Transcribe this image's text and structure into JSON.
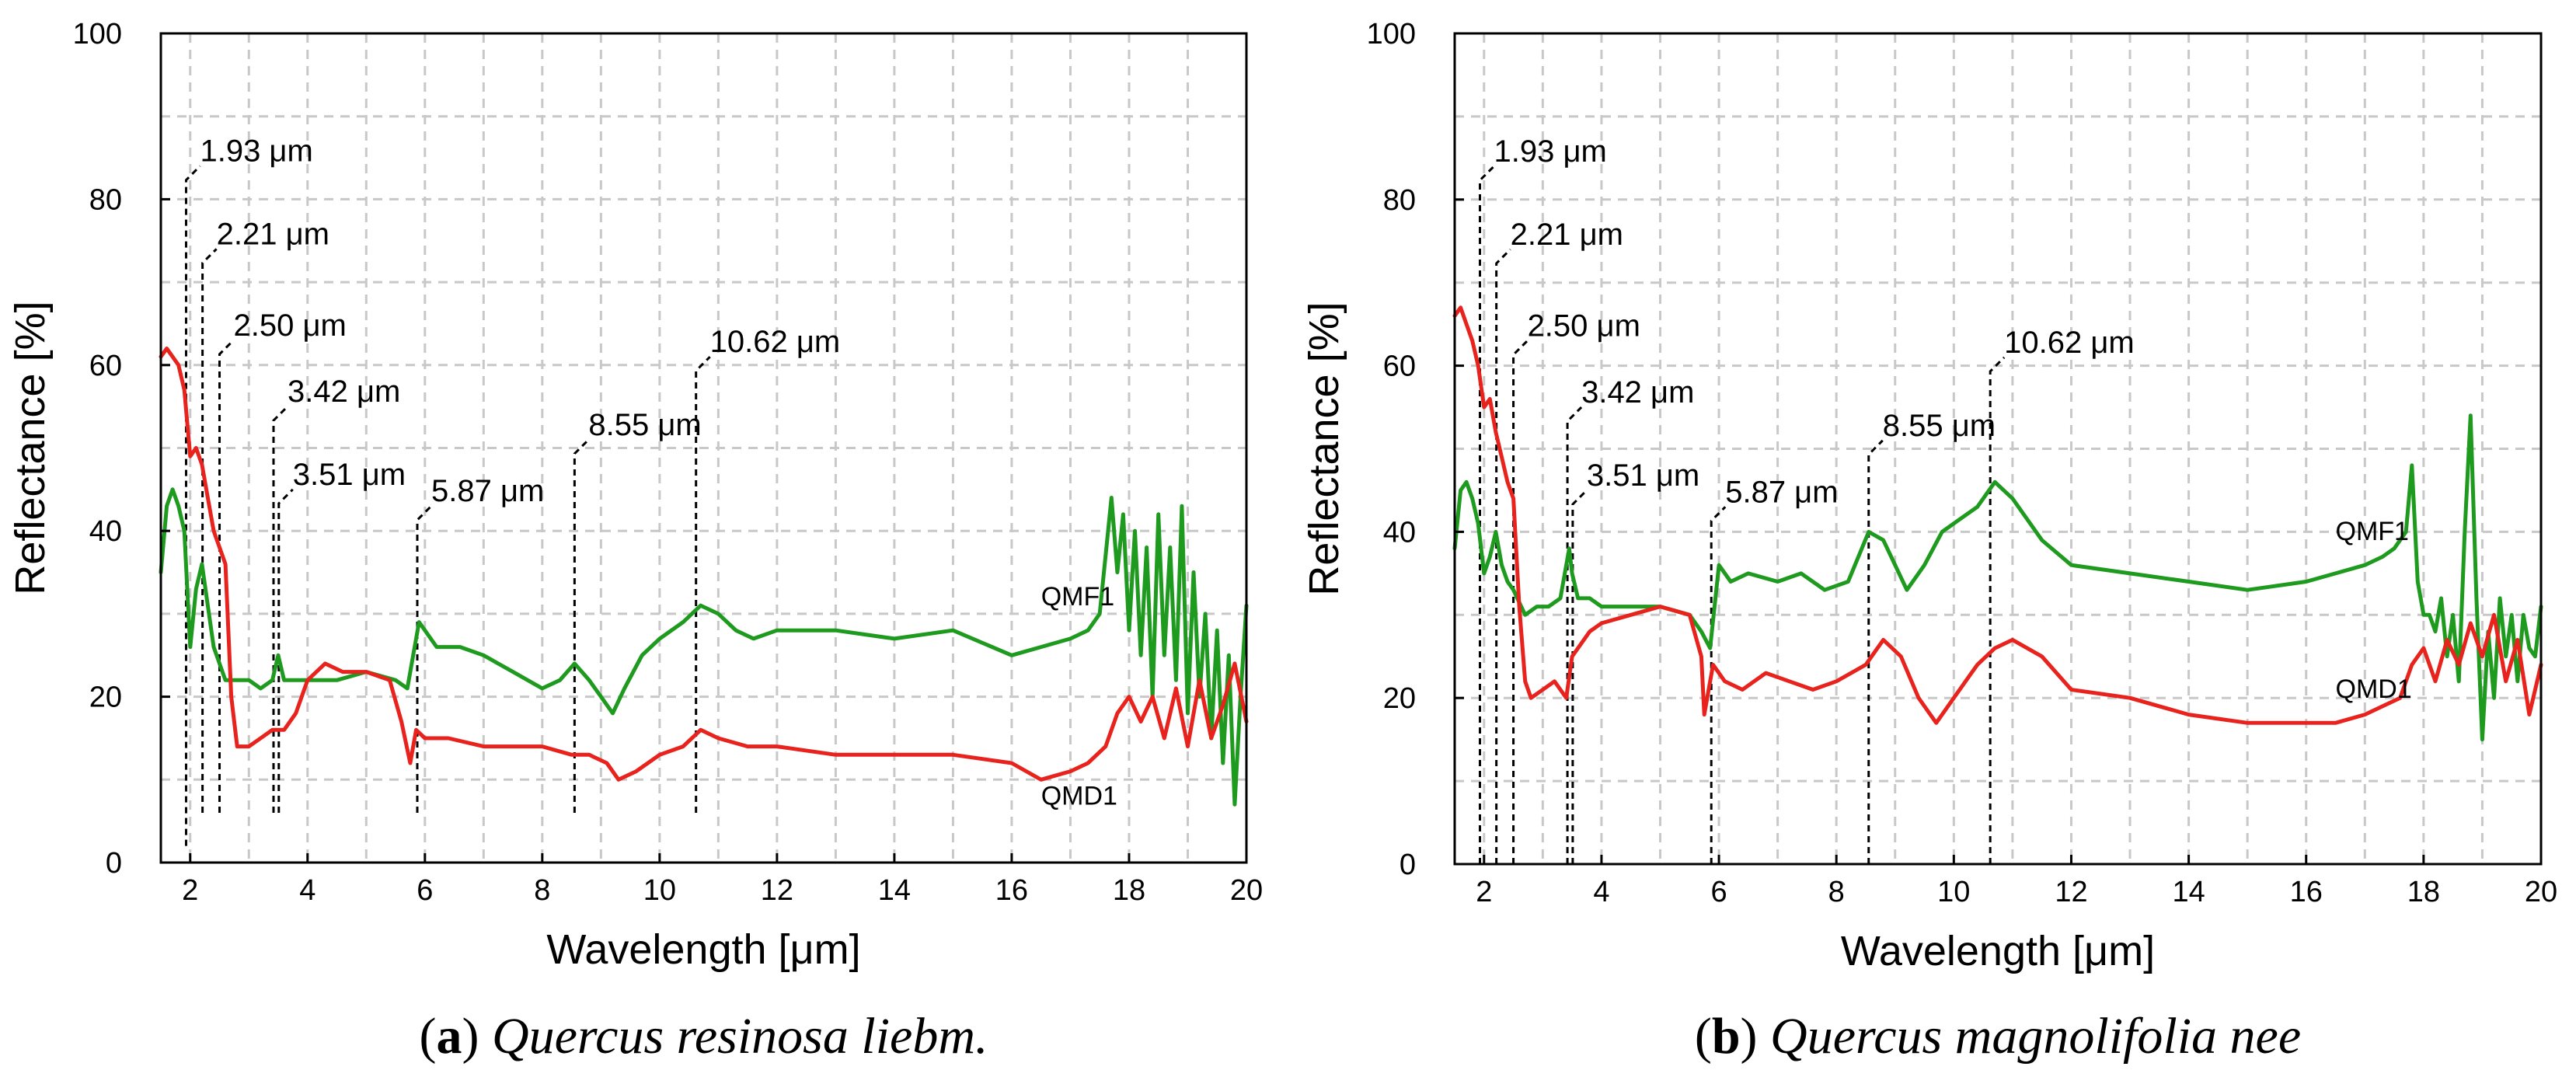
{
  "colors": {
    "QMF1": "#1e9a1e",
    "QMD1": "#e8221c",
    "grid": "#c8c8c8",
    "text": "#000000"
  },
  "chart_data": [
    {
      "type": "line",
      "panel": "a",
      "caption_letter": "a",
      "caption_species": "Quercus resinosa liebm.",
      "xlabel": "Wavelength [μm]",
      "ylabel": "Reflectance [%]",
      "xlim": [
        1.5,
        20
      ],
      "ylim": [
        0,
        100
      ],
      "xticks": [
        2,
        4,
        6,
        8,
        10,
        12,
        14,
        16,
        18,
        20
      ],
      "yticks": [
        0,
        20,
        40,
        60,
        80,
        100
      ],
      "grid": true,
      "annotations": [
        {
          "x": 1.93,
          "label": "1.93 μm",
          "label_y": 84,
          "bottom_y": 2
        },
        {
          "x": 2.21,
          "label": "2.21 μm",
          "label_y": 74,
          "bottom_y": 6
        },
        {
          "x": 2.5,
          "label": "2.50 μm",
          "label_y": 63,
          "bottom_y": 6
        },
        {
          "x": 3.42,
          "label": "3.42 μm",
          "label_y": 55,
          "bottom_y": 6
        },
        {
          "x": 3.51,
          "label": "3.51 μm",
          "label_y": 45,
          "bottom_y": 6
        },
        {
          "x": 5.87,
          "label": "5.87 μm",
          "label_y": 43,
          "bottom_y": 6
        },
        {
          "x": 8.55,
          "label": "8.55 μm",
          "label_y": 51,
          "bottom_y": 6
        },
        {
          "x": 10.62,
          "label": "10.62 μm",
          "label_y": 61,
          "bottom_y": 6
        }
      ],
      "series_labels": [
        {
          "name": "QMF1",
          "x": 16.5,
          "y": 31
        },
        {
          "name": "QMD1",
          "x": 16.5,
          "y": 7
        }
      ],
      "series": [
        {
          "name": "QMF1",
          "x": [
            1.5,
            1.6,
            1.7,
            1.8,
            1.9,
            2.0,
            2.1,
            2.2,
            2.3,
            2.4,
            2.5,
            2.6,
            2.7,
            2.8,
            3.0,
            3.2,
            3.4,
            3.5,
            3.6,
            3.8,
            4.0,
            4.5,
            5.0,
            5.5,
            5.7,
            5.8,
            5.9,
            6.2,
            6.6,
            7.0,
            7.5,
            8.0,
            8.3,
            8.55,
            8.8,
            9.0,
            9.2,
            9.4,
            9.7,
            10.0,
            10.4,
            10.7,
            11.0,
            11.3,
            11.6,
            12.0,
            13.0,
            14.0,
            15.0,
            16.0,
            16.5,
            17.0,
            17.3,
            17.5,
            17.7,
            17.8,
            17.9,
            18.0,
            18.1,
            18.2,
            18.3,
            18.4,
            18.5,
            18.6,
            18.7,
            18.8,
            18.9,
            19.0,
            19.1,
            19.2,
            19.3,
            19.4,
            19.5,
            19.6,
            19.7,
            19.8,
            19.9,
            20.0
          ],
          "values": [
            35,
            43,
            45,
            43,
            40,
            26,
            33,
            36,
            31,
            26,
            24,
            22,
            22,
            22,
            22,
            21,
            22,
            25,
            22,
            22,
            22,
            22,
            23,
            22,
            21,
            25,
            29,
            26,
            26,
            25,
            23,
            21,
            22,
            24,
            22,
            20,
            18,
            21,
            25,
            27,
            29,
            31,
            30,
            28,
            27,
            28,
            28,
            27,
            28,
            25,
            26,
            27,
            28,
            30,
            44,
            35,
            42,
            28,
            40,
            25,
            38,
            20,
            42,
            25,
            38,
            22,
            43,
            18,
            35,
            20,
            30,
            15,
            28,
            12,
            25,
            7,
            20,
            31
          ]
        },
        {
          "name": "QMD1",
          "x": [
            1.5,
            1.6,
            1.7,
            1.8,
            1.9,
            2.0,
            2.1,
            2.2,
            2.3,
            2.4,
            2.5,
            2.6,
            2.7,
            2.8,
            3.0,
            3.2,
            3.4,
            3.6,
            3.8,
            4.0,
            4.3,
            4.6,
            5.0,
            5.4,
            5.6,
            5.75,
            5.85,
            6.0,
            6.4,
            7.0,
            7.5,
            8.0,
            8.5,
            8.8,
            9.1,
            9.3,
            9.6,
            10.0,
            10.4,
            10.7,
            11.0,
            11.5,
            12.0,
            13.0,
            14.0,
            15.0,
            16.0,
            16.5,
            17.0,
            17.3,
            17.6,
            17.8,
            18.0,
            18.2,
            18.4,
            18.6,
            18.8,
            19.0,
            19.2,
            19.4,
            19.6,
            19.8,
            20.0
          ],
          "values": [
            61,
            62,
            61,
            60,
            57,
            49,
            50,
            48,
            44,
            40,
            38,
            36,
            20,
            14,
            14,
            15,
            16,
            16,
            18,
            22,
            24,
            23,
            23,
            22,
            17,
            12,
            16,
            15,
            15,
            14,
            14,
            14,
            13,
            13,
            12,
            10,
            11,
            13,
            14,
            16,
            15,
            14,
            14,
            13,
            13,
            13,
            12,
            10,
            11,
            12,
            14,
            18,
            20,
            17,
            20,
            15,
            21,
            14,
            22,
            15,
            19,
            24,
            17
          ]
        }
      ]
    },
    {
      "type": "line",
      "panel": "b",
      "caption_letter": "b",
      "caption_species": "Quercus magnolifolia nee",
      "xlabel": "Wavelength [μm]",
      "ylabel": "Reflectance [%]",
      "xlim": [
        1.5,
        20
      ],
      "ylim": [
        0,
        100
      ],
      "xticks": [
        2,
        4,
        6,
        8,
        10,
        12,
        14,
        16,
        18,
        20
      ],
      "yticks": [
        0,
        20,
        40,
        60,
        80,
        100
      ],
      "grid": true,
      "annotations": [
        {
          "x": 1.93,
          "label": "1.93 μm",
          "label_y": 84,
          "bottom_y": 0
        },
        {
          "x": 2.21,
          "label": "2.21 μm",
          "label_y": 74,
          "bottom_y": 0
        },
        {
          "x": 2.5,
          "label": "2.50 μm",
          "label_y": 63,
          "bottom_y": 0
        },
        {
          "x": 3.42,
          "label": "3.42 μm",
          "label_y": 55,
          "bottom_y": 0
        },
        {
          "x": 3.51,
          "label": "3.51 μm",
          "label_y": 45,
          "bottom_y": 0
        },
        {
          "x": 5.87,
          "label": "5.87 μm",
          "label_y": 43,
          "bottom_y": 0
        },
        {
          "x": 8.55,
          "label": "8.55 μm",
          "label_y": 51,
          "bottom_y": 0
        },
        {
          "x": 10.62,
          "label": "10.62 μm",
          "label_y": 61,
          "bottom_y": 0
        }
      ],
      "series_labels": [
        {
          "name": "QMF1",
          "x": 16.5,
          "y": 39
        },
        {
          "name": "QMD1",
          "x": 16.5,
          "y": 20
        }
      ],
      "series": [
        {
          "name": "QMF1",
          "x": [
            1.5,
            1.6,
            1.7,
            1.8,
            1.9,
            2.0,
            2.1,
            2.2,
            2.3,
            2.4,
            2.5,
            2.7,
            2.9,
            3.1,
            3.3,
            3.45,
            3.5,
            3.6,
            3.8,
            4.0,
            4.5,
            5.0,
            5.5,
            5.7,
            5.85,
            6.0,
            6.2,
            6.5,
            7.0,
            7.4,
            7.8,
            8.2,
            8.55,
            8.8,
            9.0,
            9.2,
            9.5,
            9.8,
            10.0,
            10.4,
            10.7,
            11.0,
            11.5,
            12.0,
            13.0,
            14.0,
            15.0,
            16.0,
            16.5,
            17.0,
            17.3,
            17.5,
            17.7,
            17.8,
            17.9,
            18.0,
            18.1,
            18.2,
            18.3,
            18.4,
            18.5,
            18.6,
            18.7,
            18.8,
            18.9,
            19.0,
            19.1,
            19.2,
            19.3,
            19.4,
            19.5,
            19.6,
            19.7,
            19.8,
            19.9,
            20.0
          ],
          "values": [
            38,
            45,
            46,
            44,
            41,
            35,
            37,
            40,
            36,
            34,
            33,
            30,
            31,
            31,
            32,
            38,
            35,
            32,
            32,
            31,
            31,
            31,
            30,
            28,
            26,
            36,
            34,
            35,
            34,
            35,
            33,
            34,
            40,
            39,
            36,
            33,
            36,
            40,
            41,
            43,
            46,
            44,
            39,
            36,
            35,
            34,
            33,
            34,
            35,
            36,
            37,
            38,
            40,
            48,
            34,
            30,
            30,
            28,
            32,
            25,
            30,
            22,
            40,
            54,
            32,
            15,
            28,
            20,
            32,
            25,
            30,
            22,
            30,
            26,
            25,
            31
          ]
        },
        {
          "name": "QMD1",
          "x": [
            1.5,
            1.6,
            1.7,
            1.8,
            1.9,
            2.0,
            2.1,
            2.2,
            2.3,
            2.4,
            2.5,
            2.6,
            2.7,
            2.8,
            3.0,
            3.2,
            3.4,
            3.5,
            3.6,
            3.8,
            4.0,
            4.5,
            5.0,
            5.5,
            5.7,
            5.75,
            5.9,
            6.1,
            6.4,
            6.8,
            7.2,
            7.6,
            8.0,
            8.5,
            8.8,
            9.1,
            9.4,
            9.7,
            10.0,
            10.4,
            10.7,
            11.0,
            11.5,
            12.0,
            13.0,
            14.0,
            15.0,
            16.0,
            16.5,
            17.0,
            17.3,
            17.6,
            17.8,
            18.0,
            18.2,
            18.4,
            18.6,
            18.8,
            19.0,
            19.2,
            19.4,
            19.6,
            19.8,
            20.0
          ],
          "values": [
            66,
            67,
            65,
            63,
            60,
            55,
            56,
            52,
            49,
            46,
            44,
            31,
            22,
            20,
            21,
            22,
            20,
            25,
            26,
            28,
            29,
            30,
            31,
            30,
            25,
            18,
            24,
            22,
            21,
            23,
            22,
            21,
            22,
            24,
            27,
            25,
            20,
            17,
            20,
            24,
            26,
            27,
            25,
            21,
            20,
            18,
            17,
            17,
            17,
            18,
            19,
            20,
            24,
            26,
            22,
            27,
            24,
            29,
            25,
            30,
            22,
            27,
            18,
            24
          ]
        }
      ]
    }
  ]
}
